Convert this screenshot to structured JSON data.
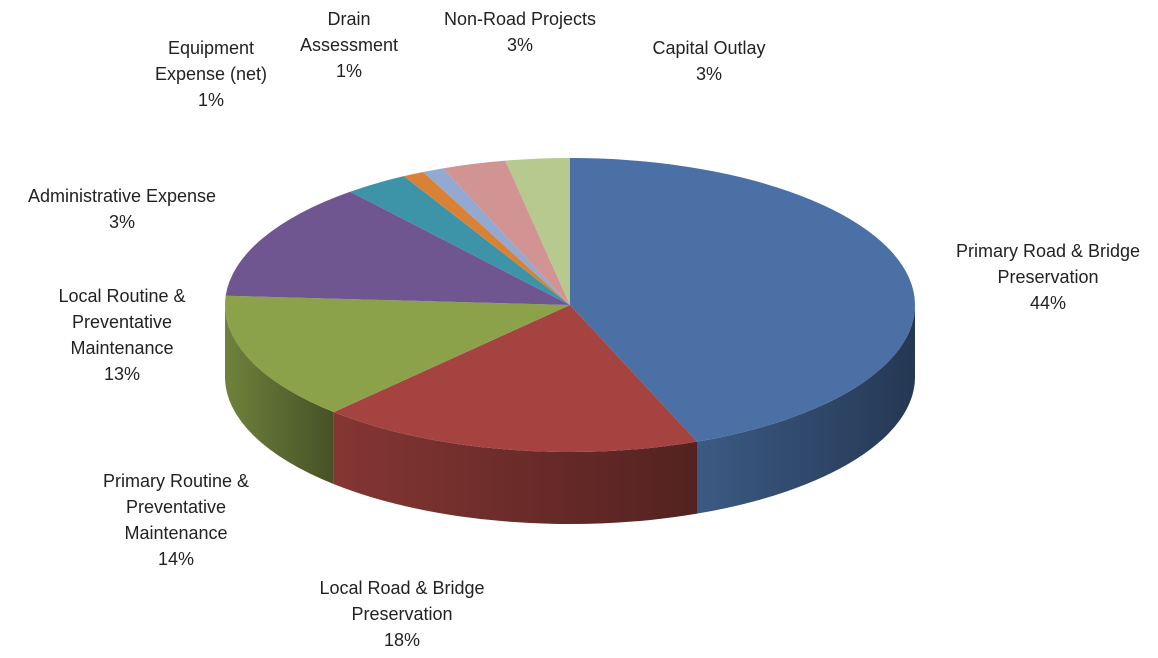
{
  "chart_data": {
    "type": "pie3d",
    "categories": [
      "Primary Road & Bridge Preservation",
      "Local Road & Bridge Preservation",
      "Primary Routine & Preventative Maintenance",
      "Local Routine & Preventative Maintenance",
      "Administrative Expense",
      "Equipment Expense (net)",
      "Drain Assessment",
      "Non-Road Projects",
      "Capital Outlay"
    ],
    "values": [
      44,
      18,
      14,
      13,
      3,
      1,
      1,
      3,
      3
    ],
    "value_labels": [
      "44%",
      "18%",
      "14%",
      "13%",
      "3%",
      "1%",
      "1%",
      "3%",
      "3%"
    ],
    "colors": [
      "#4a70a5",
      "#a54340",
      "#8ba24b",
      "#6f5690",
      "#3d94a9",
      "#d98235",
      "#93a9d2",
      "#d29393",
      "#b6c98f"
    ]
  }
}
